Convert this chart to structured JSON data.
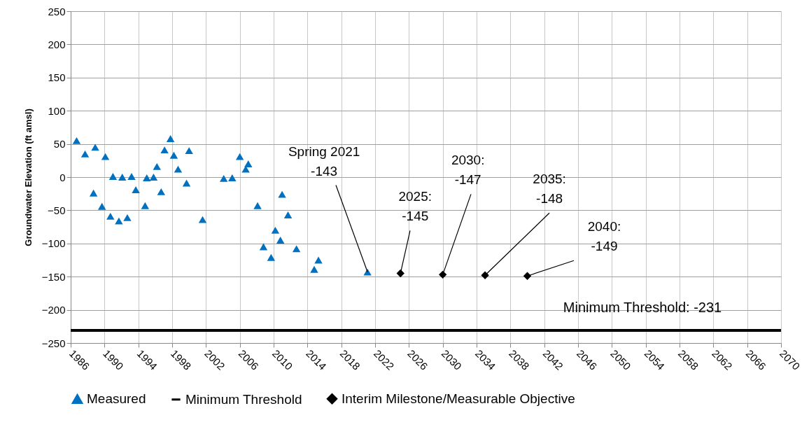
{
  "chart_data": {
    "type": "scatter",
    "ylabel": "Groundwater Elevation (ft amsl)",
    "xlim": [
      1986,
      2070
    ],
    "xticks": [
      1986,
      1990,
      1994,
      1998,
      2002,
      2006,
      2010,
      2014,
      2018,
      2022,
      2026,
      2030,
      2034,
      2038,
      2042,
      2046,
      2050,
      2054,
      2058,
      2062,
      2066,
      2070
    ],
    "ylim": [
      -250,
      250
    ],
    "yticks": [
      -250,
      -200,
      -150,
      -100,
      -50,
      0,
      50,
      100,
      150,
      200,
      250
    ],
    "grid": true,
    "legend": "bottom",
    "series": [
      {
        "name": "Measured",
        "marker": "triangle",
        "color": "#0070c0",
        "x": [
          1986.7,
          1987.7,
          1988.7,
          1988.9,
          1989.7,
          1990.1,
          1990.7,
          1991.0,
          1991.7,
          1992.1,
          1992.7,
          1993.2,
          1993.7,
          1994.8,
          1995.0,
          1995.8,
          1996.2,
          1996.7,
          1997.1,
          1997.8,
          1998.2,
          1998.7,
          1999.7,
          2000.0,
          2001.6,
          2004.1,
          2005.1,
          2006.0,
          2006.7,
          2007.0,
          2008.1,
          2008.8,
          2009.7,
          2010.2,
          2010.8,
          2011.0,
          2011.7,
          2012.7,
          2014.8,
          2015.3,
          2021.1
        ],
        "values": [
          55,
          35,
          -24,
          45,
          -44,
          31,
          -59,
          1,
          -66,
          0,
          -61,
          1,
          -19,
          -43,
          -1,
          0,
          16,
          -22,
          41,
          58,
          33,
          12,
          -9,
          40,
          -64,
          -2,
          -1,
          31,
          12,
          20,
          -43,
          -105,
          -121,
          -80,
          -95,
          -26,
          -57,
          -108,
          -139,
          -125,
          -143
        ]
      },
      {
        "name": "Minimum Threshold",
        "type": "line",
        "line_style": "solid",
        "color": "#000000",
        "x": [
          1986,
          2070
        ],
        "values": [
          -231,
          -231
        ]
      },
      {
        "name": "Interim Milestone/Measurable Objective",
        "marker": "diamond",
        "color": "#000000",
        "x": [
          2025,
          2030,
          2035,
          2040
        ],
        "values": [
          -145,
          -147,
          -148,
          -149
        ]
      }
    ],
    "annotations": [
      {
        "text": "Spring 2021\n-143",
        "x": 2021.1,
        "y": -143
      },
      {
        "text": "2025:\n-145",
        "x": 2025,
        "y": -145
      },
      {
        "text": "2030:\n-147",
        "x": 2030,
        "y": -147
      },
      {
        "text": "2035:\n-148",
        "x": 2035,
        "y": -148
      },
      {
        "text": "2040:\n-149",
        "x": 2040,
        "y": -149
      },
      "Minimum Threshold: -231"
    ]
  }
}
